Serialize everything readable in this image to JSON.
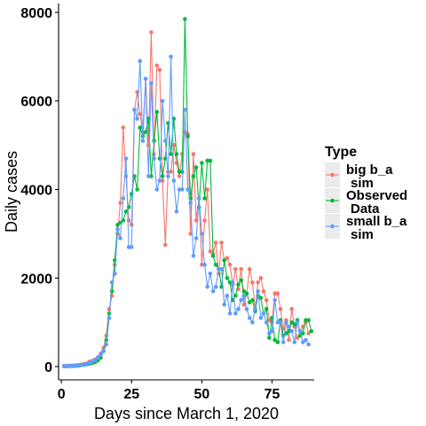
{
  "chart_data": {
    "type": "line",
    "xlabel": "Days since March 1, 2020",
    "ylabel": "Daily cases",
    "xlim": [
      -1,
      90
    ],
    "ylim": [
      -300,
      8200
    ],
    "x_ticks": [
      0,
      25,
      50,
      75
    ],
    "y_ticks": [
      0,
      2000,
      4000,
      6000,
      8000
    ],
    "grid": false,
    "legend": {
      "title": "Type",
      "placement": "right",
      "entries": [
        {
          "line1": "big b_a",
          "line2": "sim"
        },
        {
          "line1": "Observed",
          "line2": "Data"
        },
        {
          "line1": "small b_a",
          "line2": "sim"
        }
      ]
    },
    "series": [
      {
        "name": "big b_a sim",
        "color": "#F8766D",
        "x": [
          1,
          2,
          3,
          4,
          5,
          6,
          7,
          8,
          9,
          10,
          11,
          12,
          13,
          14,
          15,
          16,
          17,
          18,
          19,
          20,
          21,
          22,
          23,
          24,
          25,
          26,
          27,
          28,
          29,
          30,
          31,
          32,
          33,
          34,
          35,
          36,
          37,
          38,
          39,
          40,
          41,
          42,
          43,
          44,
          45,
          46,
          47,
          48,
          49,
          50,
          51,
          52,
          53,
          54,
          55,
          56,
          57,
          58,
          59,
          60,
          61,
          62,
          63,
          64,
          65,
          66,
          67,
          68,
          69,
          70,
          71,
          72,
          73,
          74,
          75,
          76,
          77,
          78,
          79,
          80,
          81,
          82,
          83,
          84,
          85,
          86,
          87,
          88
        ],
        "y": [
          20,
          15,
          25,
          20,
          30,
          35,
          40,
          60,
          70,
          110,
          130,
          160,
          210,
          290,
          420,
          700,
          1300,
          1600,
          2300,
          3000,
          3700,
          5400,
          4300,
          3300,
          3200,
          5800,
          6200,
          5700,
          5300,
          6500,
          5000,
          7550,
          4800,
          6800,
          6700,
          4200,
          2750,
          4400,
          4400,
          5000,
          4600,
          4300,
          4800,
          5300,
          5250,
          3000,
          4800,
          3300,
          3800,
          2300,
          3300,
          4000,
          2600,
          2550,
          2800,
          2100,
          2800,
          2400,
          2450,
          2300,
          1850,
          2200,
          1750,
          2200,
          1400,
          1650,
          2200,
          1900,
          1300,
          1900,
          2000,
          1700,
          1500,
          1050,
          1000,
          1650,
          1650,
          1300,
          850,
          1050,
          600,
          1300,
          900,
          650,
          700,
          900,
          1000,
          750
        ]
      },
      {
        "name": "Observed Data",
        "color": "#00BA38",
        "x": [
          1,
          2,
          3,
          4,
          5,
          6,
          7,
          8,
          9,
          10,
          11,
          12,
          13,
          14,
          15,
          16,
          17,
          18,
          19,
          20,
          21,
          22,
          23,
          24,
          25,
          26,
          27,
          28,
          29,
          30,
          31,
          32,
          33,
          34,
          35,
          36,
          37,
          38,
          39,
          40,
          41,
          42,
          43,
          44,
          45,
          46,
          47,
          48,
          49,
          50,
          51,
          52,
          53,
          54,
          55,
          56,
          57,
          58,
          59,
          60,
          61,
          62,
          63,
          64,
          65,
          66,
          67,
          68,
          69,
          70,
          71,
          72,
          73,
          74,
          75,
          76,
          77,
          78,
          79,
          80,
          81,
          82,
          83,
          84,
          85,
          86,
          87,
          88,
          89
        ],
        "y": [
          5,
          5,
          10,
          10,
          15,
          20,
          30,
          40,
          50,
          60,
          80,
          100,
          140,
          200,
          350,
          600,
          1200,
          1700,
          2400,
          3200,
          3250,
          3300,
          3500,
          3600,
          3900,
          4300,
          4000,
          5400,
          5200,
          5300,
          5600,
          4300,
          5100,
          5750,
          4700,
          4300,
          4700,
          5500,
          4800,
          5600,
          4800,
          4400,
          4400,
          7850,
          5200,
          3800,
          4300,
          4500,
          3600,
          4600,
          3800,
          4650,
          4650,
          2500,
          2300,
          2200,
          1800,
          2400,
          2000,
          1900,
          1500,
          1600,
          1850,
          1950,
          1700,
          1650,
          1450,
          1500,
          1250,
          1600,
          1550,
          1200,
          1300,
          650,
          1100,
          600,
          550,
          1050,
          700,
          750,
          800,
          1000,
          950,
          1050,
          700,
          750,
          1050,
          1050,
          800
        ]
      },
      {
        "name": "small b_a sim",
        "color": "#619CFF",
        "x": [
          1,
          2,
          3,
          4,
          5,
          6,
          7,
          8,
          9,
          10,
          11,
          12,
          13,
          14,
          15,
          16,
          17,
          18,
          19,
          20,
          21,
          22,
          23,
          24,
          25,
          26,
          27,
          28,
          29,
          30,
          31,
          32,
          33,
          34,
          35,
          36,
          37,
          38,
          39,
          40,
          41,
          42,
          43,
          44,
          45,
          46,
          47,
          48,
          49,
          50,
          51,
          52,
          53,
          54,
          55,
          56,
          57,
          58,
          59,
          60,
          61,
          62,
          63,
          64,
          65,
          66,
          67,
          68,
          69,
          70,
          71,
          72,
          73,
          74,
          75,
          76,
          77,
          78,
          79,
          80,
          81,
          82,
          83,
          84,
          85,
          86,
          87,
          88
        ],
        "y": [
          10,
          10,
          15,
          20,
          25,
          30,
          40,
          50,
          60,
          80,
          110,
          150,
          200,
          270,
          350,
          500,
          1100,
          1900,
          2100,
          3100,
          2900,
          3800,
          4700,
          2700,
          2700,
          5800,
          5600,
          6900,
          5100,
          6500,
          4300,
          6400,
          4700,
          4000,
          4200,
          6000,
          5100,
          4300,
          7000,
          4200,
          3500,
          4000,
          4000,
          5800,
          4000,
          3700,
          2500,
          2900,
          3800,
          3000,
          2300,
          1800,
          2100,
          1700,
          1800,
          2200,
          2200,
          1400,
          1600,
          1200,
          1900,
          1200,
          1300,
          1500,
          1600,
          1300,
          1100,
          1000,
          1300,
          1700,
          1100,
          1200,
          1000,
          750,
          800,
          1500,
          1000,
          1000,
          550,
          1000,
          900,
          800,
          550,
          1000,
          800,
          550,
          600,
          500
        ]
      }
    ]
  }
}
